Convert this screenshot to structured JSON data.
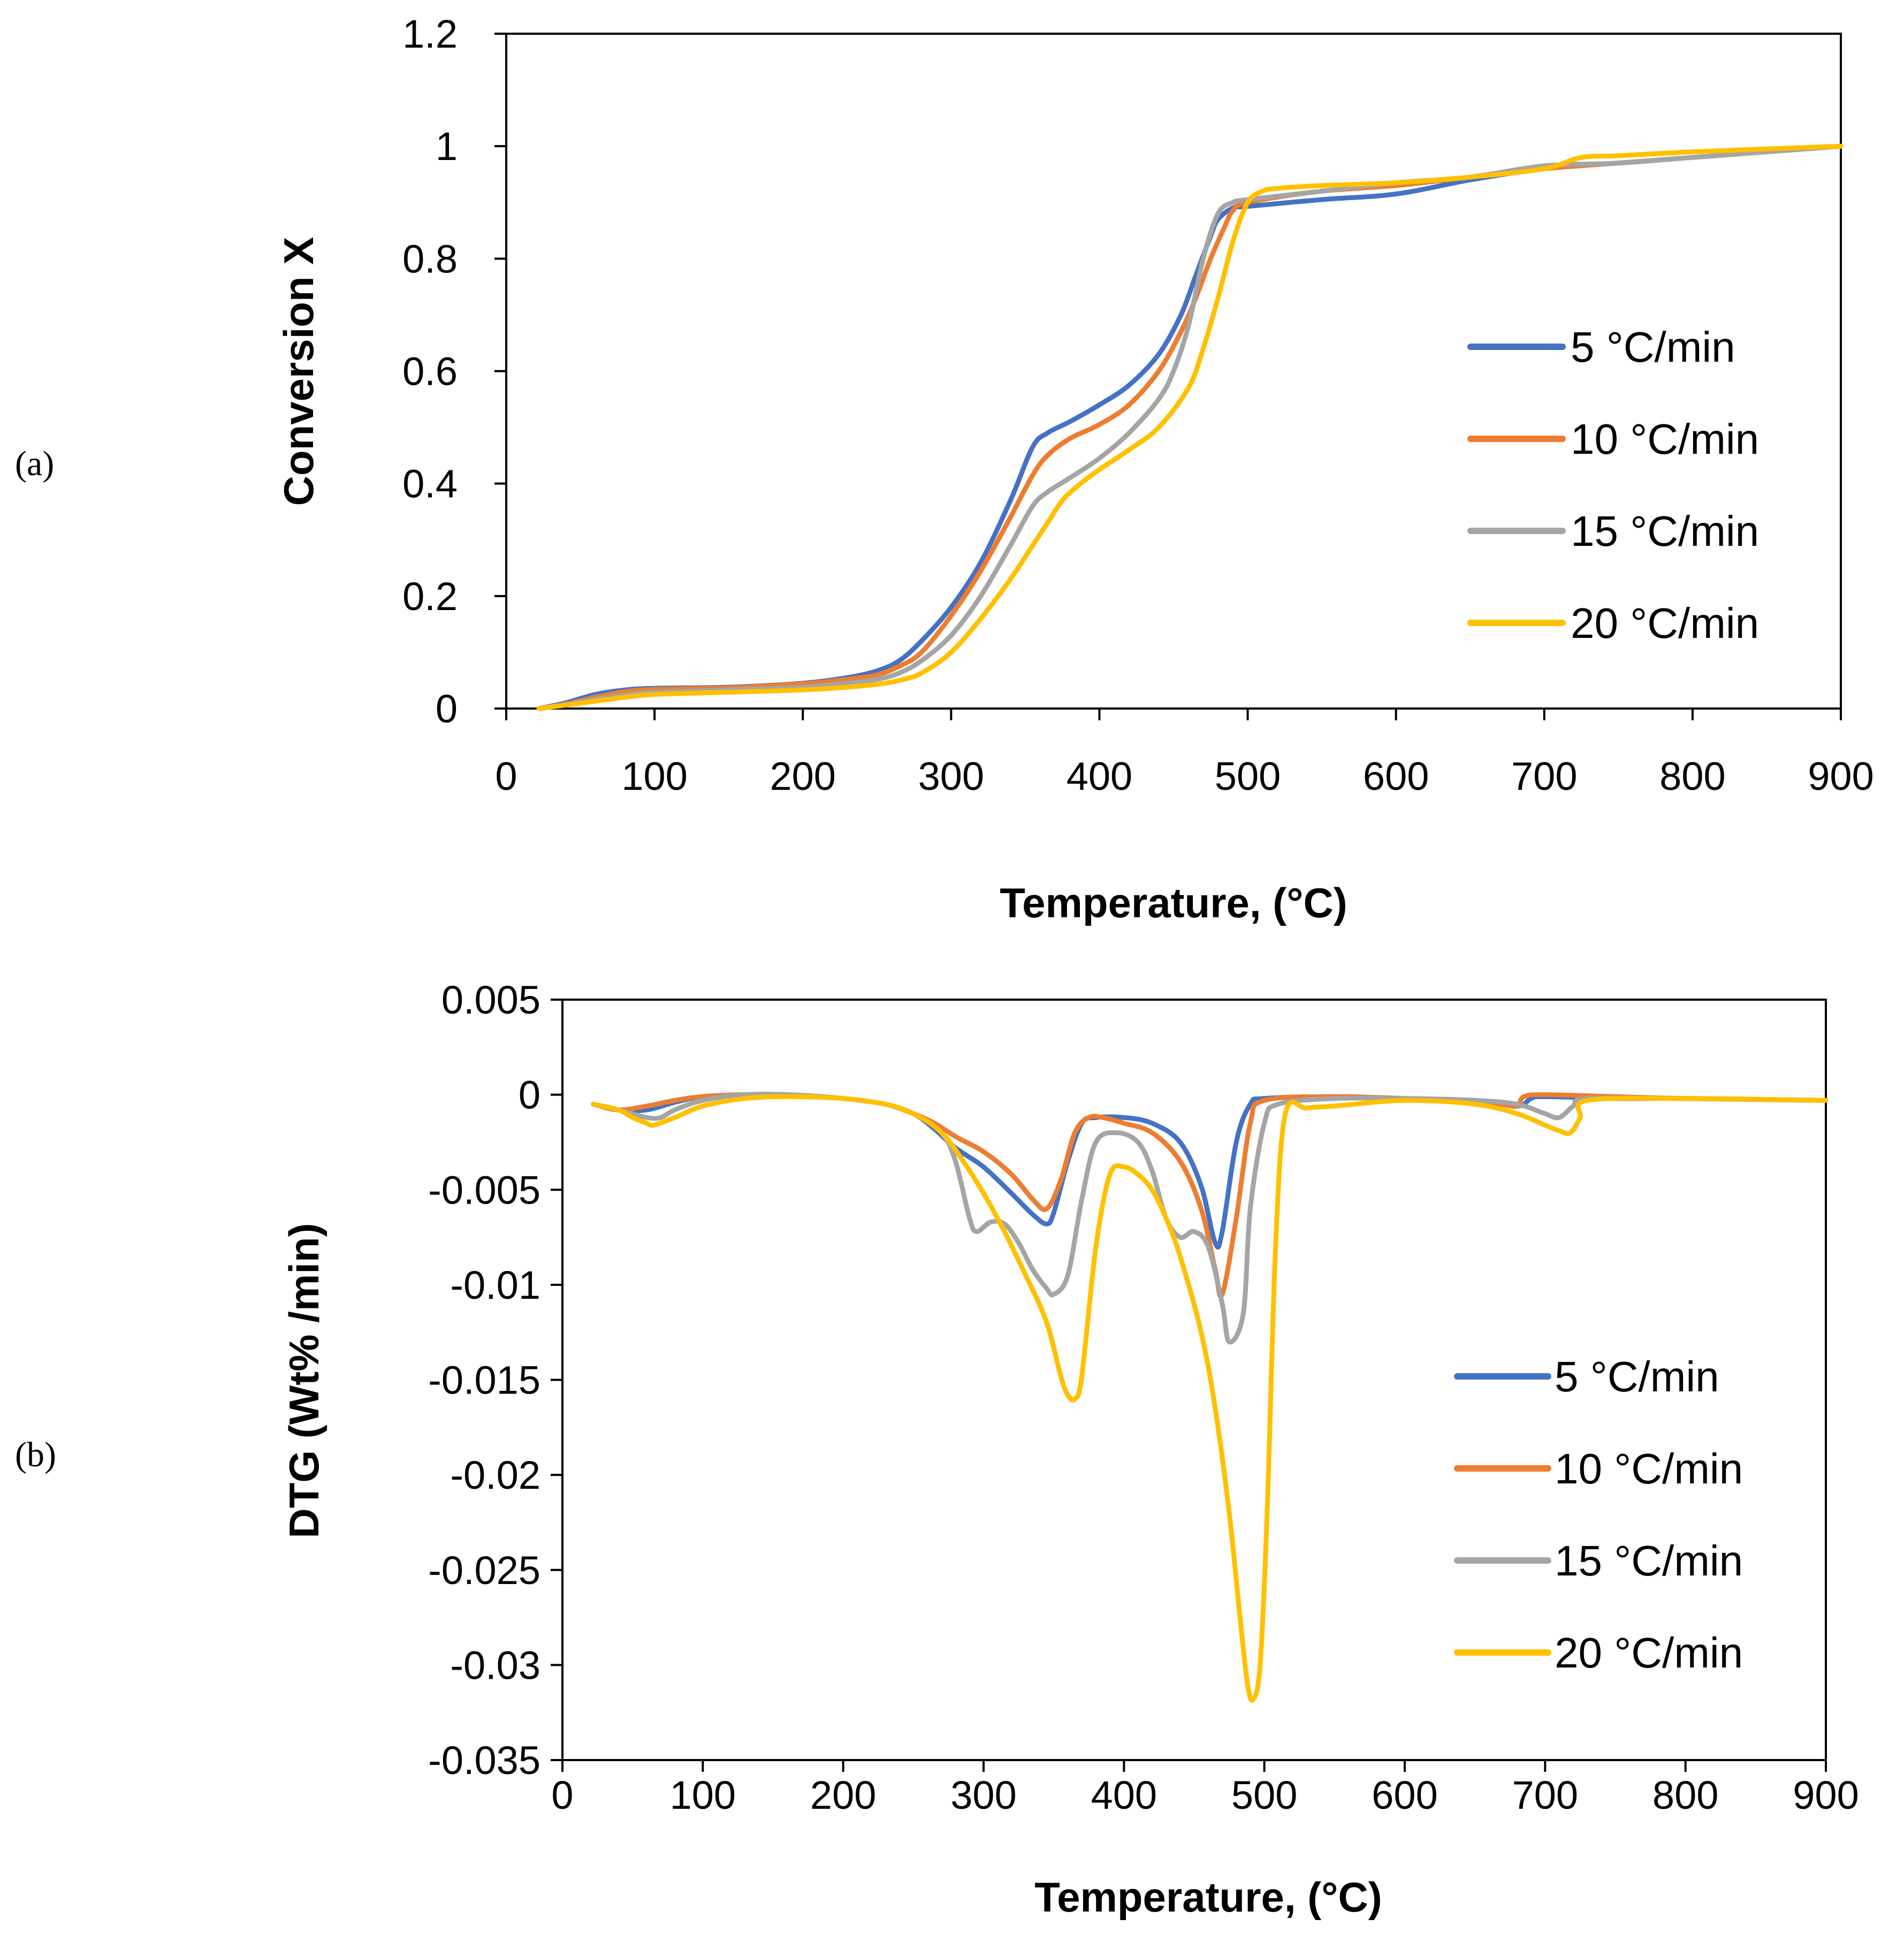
{
  "chart_data": [
    {
      "panel": "(a)",
      "type": "line",
      "title": "",
      "xlabel": "Temperature, (°C)",
      "ylabel": "Conversion X",
      "xlim": [
        0,
        900
      ],
      "ylim": [
        0,
        1.2
      ],
      "xticks": [
        0,
        100,
        200,
        300,
        400,
        500,
        600,
        700,
        800,
        900
      ],
      "xtick_labels": [
        "0",
        "100",
        "200",
        "300",
        "400",
        "500",
        "600",
        "700",
        "800",
        "900"
      ],
      "yticks": [
        0,
        0.2,
        0.4,
        0.6,
        0.8,
        1.0,
        1.2
      ],
      "ytick_labels": [
        "0",
        "0.2",
        "0.4",
        "0.6",
        "0.8",
        "1",
        "1.2"
      ],
      "grid": false,
      "legend_position": "right",
      "series": [
        {
          "name": "5 °C/min",
          "color": "#4472C4",
          "x": [
            22,
            40,
            60,
            80,
            100,
            150,
            200,
            230,
            250,
            265,
            280,
            300,
            320,
            340,
            355,
            365,
            380,
            400,
            420,
            440,
            455,
            465,
            475,
            480,
            490,
            500,
            550,
            600,
            650,
            700,
            750,
            800,
            900
          ],
          "y": [
            0,
            0.01,
            0.025,
            0.033,
            0.036,
            0.038,
            0.045,
            0.055,
            0.067,
            0.085,
            0.12,
            0.18,
            0.26,
            0.37,
            0.465,
            0.49,
            0.51,
            0.54,
            0.575,
            0.63,
            0.7,
            0.77,
            0.84,
            0.87,
            0.89,
            0.893,
            0.905,
            0.915,
            0.94,
            0.96,
            0.97,
            0.98,
            1.0
          ]
        },
        {
          "name": "10 °C/min",
          "color": "#ED7D31",
          "x": [
            22,
            40,
            60,
            80,
            100,
            150,
            200,
            230,
            250,
            265,
            280,
            300,
            320,
            340,
            355,
            365,
            380,
            400,
            420,
            440,
            455,
            465,
            475,
            485,
            490,
            500,
            550,
            600,
            650,
            700,
            750,
            800,
            900
          ],
          "y": [
            0,
            0.008,
            0.02,
            0.03,
            0.034,
            0.037,
            0.044,
            0.052,
            0.06,
            0.075,
            0.1,
            0.165,
            0.245,
            0.34,
            0.415,
            0.45,
            0.48,
            0.505,
            0.54,
            0.6,
            0.67,
            0.73,
            0.8,
            0.86,
            0.885,
            0.9,
            0.92,
            0.93,
            0.945,
            0.96,
            0.97,
            0.98,
            1.0
          ]
        },
        {
          "name": "15 °C/min",
          "color": "#A5A5A5",
          "x": [
            22,
            40,
            60,
            80,
            100,
            150,
            200,
            230,
            250,
            265,
            280,
            300,
            320,
            340,
            355,
            365,
            380,
            400,
            420,
            440,
            450,
            460,
            470,
            480,
            490,
            500,
            550,
            600,
            650,
            700,
            750,
            800,
            900
          ],
          "y": [
            0,
            0.007,
            0.016,
            0.024,
            0.029,
            0.033,
            0.038,
            0.045,
            0.052,
            0.063,
            0.085,
            0.13,
            0.2,
            0.29,
            0.36,
            0.385,
            0.41,
            0.445,
            0.49,
            0.55,
            0.6,
            0.68,
            0.8,
            0.88,
            0.9,
            0.905,
            0.92,
            0.935,
            0.945,
            0.965,
            0.97,
            0.98,
            1.0
          ]
        },
        {
          "name": "20 °C/min",
          "color": "#FFC000",
          "x": [
            22,
            40,
            60,
            80,
            100,
            150,
            200,
            230,
            250,
            265,
            280,
            300,
            320,
            340,
            355,
            365,
            375,
            385,
            400,
            420,
            440,
            460,
            470,
            480,
            490,
            500,
            510,
            520,
            550,
            600,
            650,
            700,
            725,
            750,
            800,
            900
          ],
          "y": [
            0,
            0.006,
            0.013,
            0.02,
            0.025,
            0.029,
            0.033,
            0.038,
            0.043,
            0.05,
            0.063,
            0.1,
            0.16,
            0.23,
            0.29,
            0.33,
            0.37,
            0.395,
            0.425,
            0.46,
            0.5,
            0.57,
            0.64,
            0.73,
            0.83,
            0.9,
            0.92,
            0.925,
            0.93,
            0.935,
            0.945,
            0.96,
            0.98,
            0.983,
            0.99,
            1.0
          ]
        }
      ]
    },
    {
      "panel": "(b)",
      "type": "line",
      "title": "",
      "xlabel": "Temperature, (°C)",
      "ylabel": "DTG (Wt% /min)",
      "xlim": [
        0,
        900
      ],
      "ylim": [
        -0.035,
        0.005
      ],
      "xticks": [
        0,
        100,
        200,
        300,
        400,
        500,
        600,
        700,
        800,
        900
      ],
      "xtick_labels": [
        "0",
        "100",
        "200",
        "300",
        "400",
        "500",
        "600",
        "700",
        "800",
        "900"
      ],
      "yticks": [
        0.005,
        0,
        -0.005,
        -0.01,
        -0.015,
        -0.02,
        -0.025,
        -0.03,
        -0.035
      ],
      "ytick_labels": [
        "0.005",
        "0",
        "-0.005",
        "-0.01",
        "-0.015",
        "-0.02",
        "-0.025",
        "-0.03",
        "-0.035"
      ],
      "grid": false,
      "legend_position": "right",
      "series": [
        {
          "name": "5 °C/min",
          "color": "#4472C4",
          "x": [
            22,
            40,
            60,
            80,
            100,
            130,
            160,
            200,
            230,
            250,
            265,
            280,
            300,
            320,
            335,
            345,
            350,
            360,
            370,
            380,
            400,
            420,
            440,
            455,
            465,
            470,
            480,
            490,
            500,
            550,
            600,
            650,
            680,
            690,
            700,
            750,
            800,
            900
          ],
          "y": [
            -0.0005,
            -0.0008,
            -0.0008,
            -0.0004,
            -0.0001,
            0,
            0,
            -0.0002,
            -0.0005,
            -0.001,
            -0.0018,
            -0.0028,
            -0.0038,
            -0.0052,
            -0.0063,
            -0.0068,
            -0.0062,
            -0.0035,
            -0.0015,
            -0.0012,
            -0.0012,
            -0.0015,
            -0.0025,
            -0.0048,
            -0.0078,
            -0.0072,
            -0.0025,
            -0.0005,
            -0.0002,
            -0.0001,
            -0.0002,
            -0.0003,
            -0.0006,
            -0.0002,
            -0.0001,
            -0.0002,
            -0.0002,
            -0.0003
          ]
        },
        {
          "name": "10 °C/min",
          "color": "#ED7D31",
          "x": [
            22,
            40,
            60,
            80,
            100,
            130,
            160,
            200,
            230,
            250,
            265,
            280,
            300,
            320,
            335,
            345,
            355,
            365,
            375,
            385,
            400,
            420,
            440,
            455,
            465,
            470,
            480,
            490,
            500,
            550,
            600,
            650,
            670,
            680,
            685,
            700,
            750,
            800,
            900
          ],
          "y": [
            -0.0005,
            -0.0008,
            -0.0006,
            -0.0003,
            -0.0001,
            0,
            0,
            -0.0002,
            -0.0005,
            -0.001,
            -0.0015,
            -0.0022,
            -0.003,
            -0.0042,
            -0.0055,
            -0.006,
            -0.0045,
            -0.002,
            -0.0012,
            -0.0012,
            -0.0015,
            -0.002,
            -0.0035,
            -0.006,
            -0.0092,
            -0.0105,
            -0.0065,
            -0.0015,
            -0.0003,
            -0.0001,
            -0.0002,
            -0.0003,
            -0.0005,
            -0.0006,
            -0.0001,
            0,
            -0.0001,
            -0.0002,
            -0.0003
          ]
        },
        {
          "name": "15 °C/min",
          "color": "#A5A5A5",
          "x": [
            22,
            40,
            60,
            70,
            80,
            100,
            130,
            160,
            200,
            230,
            250,
            270,
            280,
            290,
            295,
            305,
            315,
            325,
            335,
            345,
            350,
            360,
            370,
            380,
            395,
            410,
            420,
            430,
            440,
            450,
            460,
            470,
            475,
            485,
            490,
            500,
            510,
            550,
            600,
            650,
            680,
            700,
            710,
            720,
            730,
            800,
            900
          ],
          "y": [
            -0.0005,
            -0.0008,
            -0.0012,
            -0.0012,
            -0.0008,
            -0.0003,
            0,
            0,
            -0.0002,
            -0.0005,
            -0.001,
            -0.002,
            -0.0035,
            -0.0065,
            -0.0072,
            -0.0067,
            -0.0068,
            -0.0078,
            -0.0092,
            -0.0102,
            -0.0105,
            -0.0095,
            -0.0055,
            -0.0025,
            -0.002,
            -0.0025,
            -0.004,
            -0.0065,
            -0.0075,
            -0.0072,
            -0.008,
            -0.011,
            -0.013,
            -0.0115,
            -0.006,
            -0.0015,
            -0.0005,
            -0.0002,
            -0.0002,
            -0.0003,
            -0.0005,
            -0.001,
            -0.0012,
            -0.0006,
            -0.0002,
            -0.0002,
            -0.0003
          ]
        },
        {
          "name": "20 °C/min",
          "color": "#FFC000",
          "x": [
            22,
            40,
            50,
            60,
            65,
            80,
            100,
            130,
            160,
            200,
            230,
            250,
            270,
            290,
            310,
            330,
            345,
            355,
            360,
            365,
            370,
            380,
            390,
            400,
            410,
            420,
            430,
            440,
            455,
            465,
            475,
            482,
            488,
            492,
            497,
            502,
            508,
            515,
            530,
            550,
            600,
            650,
            680,
            700,
            710,
            718,
            725,
            730,
            800,
            900
          ],
          "y": [
            -0.0005,
            -0.0008,
            -0.0012,
            -0.0015,
            -0.0016,
            -0.0012,
            -0.0006,
            -0.0002,
            -0.0001,
            -0.0002,
            -0.0005,
            -0.001,
            -0.002,
            -0.004,
            -0.0065,
            -0.0095,
            -0.012,
            -0.0148,
            -0.0158,
            -0.016,
            -0.0148,
            -0.008,
            -0.0042,
            -0.0038,
            -0.0042,
            -0.005,
            -0.0065,
            -0.0085,
            -0.0125,
            -0.0165,
            -0.022,
            -0.027,
            -0.031,
            -0.0318,
            -0.03,
            -0.022,
            -0.008,
            -0.001,
            -0.0007,
            -0.0006,
            -0.0003,
            -0.0005,
            -0.001,
            -0.0016,
            -0.0019,
            -0.002,
            -0.0012,
            -0.0003,
            -0.0002,
            -0.0003
          ]
        }
      ]
    }
  ],
  "panel_labels": [
    "(a)",
    "(b)"
  ]
}
